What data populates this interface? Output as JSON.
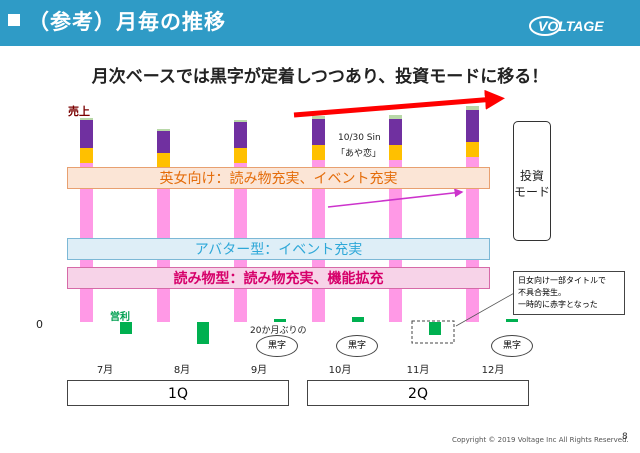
{
  "header": {
    "title": "（参考）月毎の推移",
    "logo_text": "VOLTAGE"
  },
  "subtitle": "月次ベースでは黒字が定着しつつあり、投資モードに移る！",
  "labels": {
    "sales": "売上",
    "profit": "営利",
    "zero": "0",
    "event_note_line1": "10/30 Sin",
    "event_note_line2": "「あや恋」",
    "first_black_note": "20か月ぶりの"
  },
  "bands": {
    "band1": "英女向け：読み物充実、イベント充実",
    "band2": "アバター型：イベント充実",
    "band3": "読み物型：読み物充実、機能拡充"
  },
  "bubbles": {
    "b1": "黒字",
    "b2": "黒字",
    "b3": "黒字"
  },
  "months": [
    "7月",
    "8月",
    "9月",
    "10月",
    "11月",
    "12月"
  ],
  "quarters": {
    "q1": "1Q",
    "q2": "2Q"
  },
  "mode_box": {
    "line1": "投資",
    "line2": "モード"
  },
  "note_box": {
    "line1": "日女向け一部タイトルで",
    "line2": "不具合発生。",
    "line3": "一時的に赤字となった"
  },
  "footer": {
    "copyright": "Copyright © 2019 Voltage Inc  All Rights Reserved.",
    "page": "8"
  },
  "colors": {
    "header": "#2f9bc6",
    "purple": "#7030a0",
    "orange": "#ffc000",
    "pink": "#ff99e6",
    "green": "#00b050",
    "red": "#ff0000",
    "magenta": "#cc33cc"
  },
  "chart_data": {
    "type": "bar",
    "categories": [
      "7月",
      "8月",
      "9月",
      "10月",
      "11月",
      "12月"
    ],
    "sales_segments": [
      {
        "values": [
          28,
          22,
          26,
          26,
          26,
          32
        ]
      },
      {
        "values": [
          15,
          15,
          15,
          15,
          15,
          15
        ]
      },
      {
        "values": [
          159,
          154,
          159,
          162,
          162,
          165
        ]
      },
      {
        "values": [
          2,
          2,
          2,
          3,
          4,
          4
        ]
      }
    ],
    "operating_profit": [
      -12,
      -22,
      3,
      5,
      -13,
      3
    ]
  }
}
